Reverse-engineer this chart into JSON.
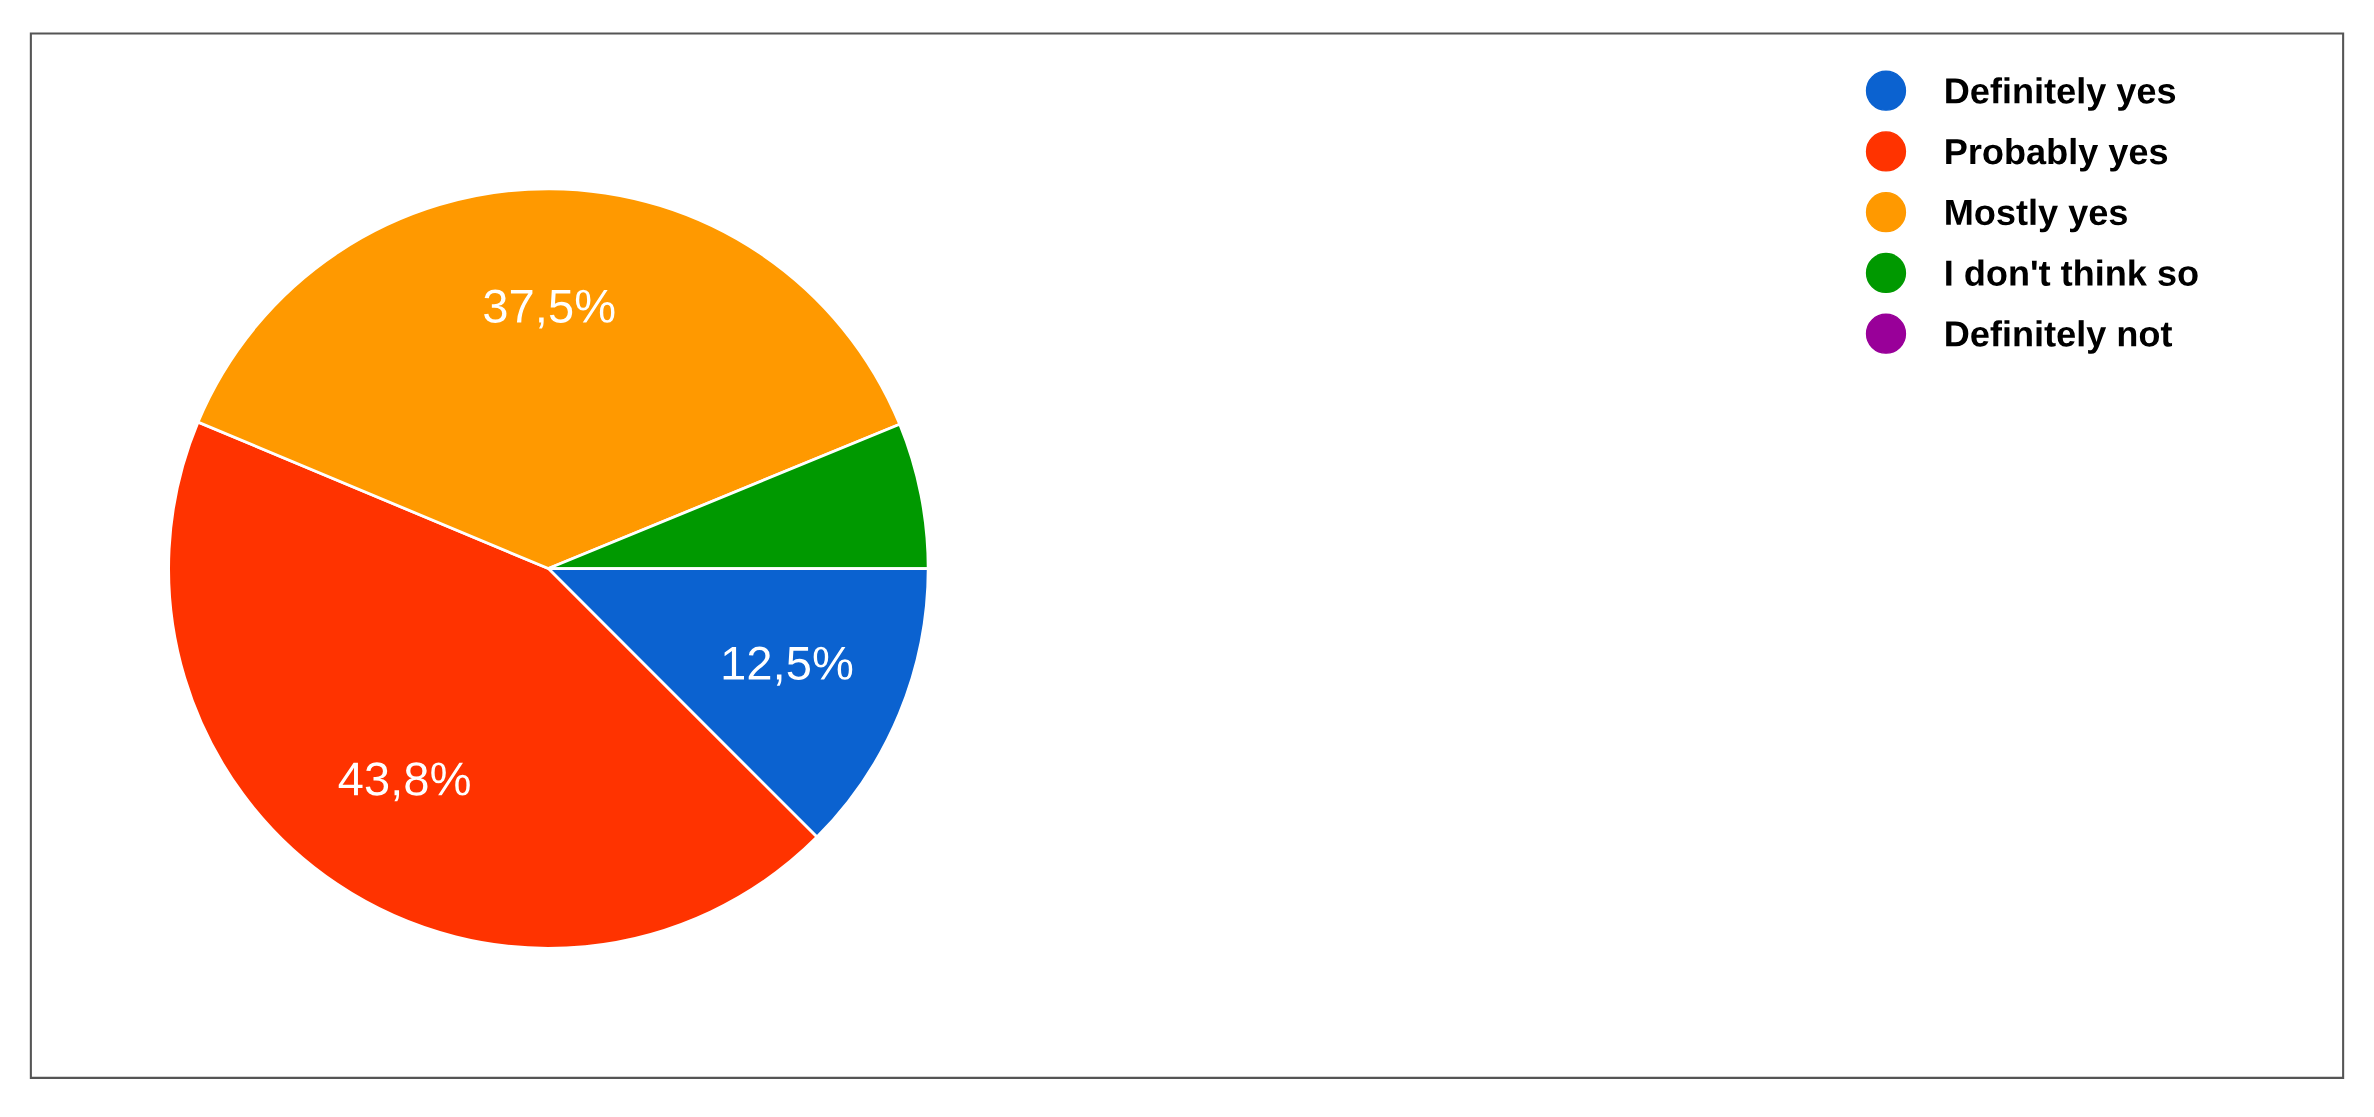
{
  "chart_data": {
    "type": "pie",
    "categories": [
      "Definitely yes",
      "Probably yes",
      "Mostly yes",
      "I don't think so",
      "Definitely not"
    ],
    "values": [
      12.5,
      43.8,
      37.5,
      6.2,
      0
    ],
    "colors": [
      "#0b62d0",
      "#ff3300",
      "#ff9900",
      "#009900",
      "#990099"
    ],
    "value_labels": [
      "12,5%",
      "43,8%",
      "37,5%",
      null,
      null
    ],
    "legend": "top right"
  }
}
